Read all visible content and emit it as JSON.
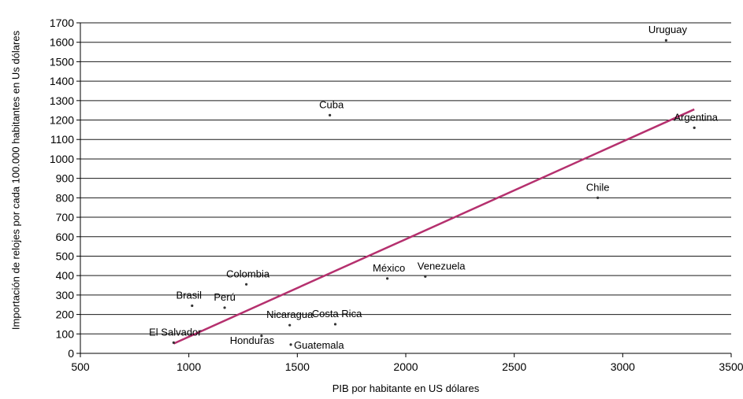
{
  "chart_data": {
    "type": "scatter",
    "title": "",
    "xlabel": "PIB por habitante en US dólares",
    "ylabel": "Importación de relojes por cada 100.000 habitantes en Us dólares",
    "xlim": [
      500,
      3500
    ],
    "ylim": [
      0,
      1700
    ],
    "xticks": [
      500,
      1000,
      1500,
      2000,
      2500,
      3000,
      3500
    ],
    "yticks": [
      0,
      100,
      200,
      300,
      400,
      500,
      600,
      700,
      800,
      900,
      1000,
      1100,
      1200,
      1300,
      1400,
      1500,
      1600,
      1700
    ],
    "grid": "horizontal",
    "points": [
      {
        "label": "Uruguay",
        "x": 3200,
        "y": 1610
      },
      {
        "label": "Argentina",
        "x": 3330,
        "y": 1160
      },
      {
        "label": "Cuba",
        "x": 1650,
        "y": 1225
      },
      {
        "label": "Chile",
        "x": 2885,
        "y": 800
      },
      {
        "label": "México",
        "x": 1915,
        "y": 385
      },
      {
        "label": "Venezuela",
        "x": 2090,
        "y": 395
      },
      {
        "label": "Colombia",
        "x": 1265,
        "y": 355
      },
      {
        "label": "Brasil",
        "x": 1015,
        "y": 245
      },
      {
        "label": "Perú",
        "x": 1165,
        "y": 235
      },
      {
        "label": "Nicaragua",
        "x": 1465,
        "y": 145
      },
      {
        "label": "Costa Rica",
        "x": 1675,
        "y": 150
      },
      {
        "label": "El Salvador",
        "x": 930,
        "y": 55
      },
      {
        "label": "Honduras",
        "x": 1335,
        "y": 90
      },
      {
        "label": "Guatemala",
        "x": 1470,
        "y": 45
      }
    ],
    "trendline": {
      "color": "#b5306e",
      "x": [
        930,
        3330
      ],
      "y": [
        50,
        1255
      ]
    },
    "colors": {
      "point": "#333333",
      "grid": "#1a1a1a",
      "trend": "#b5306e"
    }
  }
}
